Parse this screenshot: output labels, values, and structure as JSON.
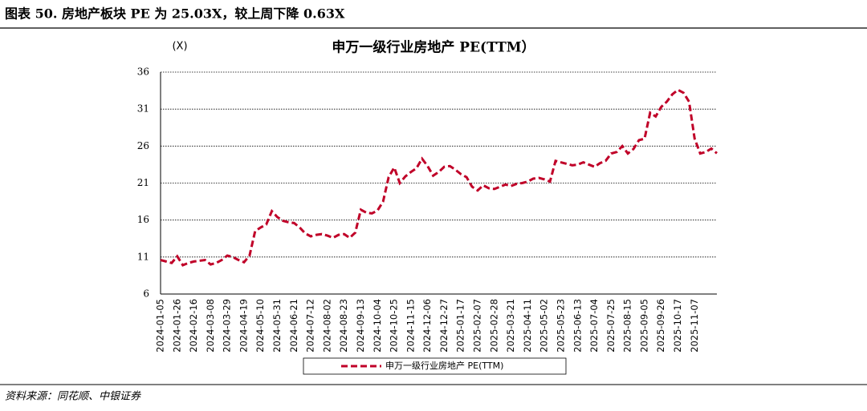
{
  "header": {
    "title": "图表 50. 房地产板块 PE 为 25.03X，较上周下降 0.63X"
  },
  "chart_data": {
    "type": "line",
    "title": "申万一级行业房地产 PE(TTM）",
    "y_unit": "(X)",
    "categories": [
      "2024-01-05",
      null,
      null,
      "2024-01-26",
      null,
      null,
      "2024-02-16",
      null,
      null,
      "2024-03-08",
      null,
      null,
      "2024-03-29",
      null,
      null,
      "2024-04-19",
      null,
      null,
      "2024-05-10",
      null,
      null,
      "2024-05-31",
      null,
      null,
      "2024-06-21",
      null,
      null,
      "2024-07-12",
      null,
      null,
      "2024-08-02",
      null,
      null,
      "2024-08-23",
      null,
      null,
      "2024-09-13",
      null,
      null,
      "2024-10-04",
      null,
      null,
      "2024-10-25",
      null,
      null,
      "2024-11-15",
      null,
      null,
      "2024-12-06",
      null,
      null,
      "2024-12-27",
      null,
      null,
      "2025-01-17",
      null,
      null,
      "2025-02-07",
      null,
      null,
      "2025-02-28",
      null,
      null,
      "2025-03-21",
      null,
      null,
      "2025-04-11",
      null,
      null,
      "2025-05-02",
      null,
      null,
      "2025-05-23",
      null,
      null,
      "2025-06-13",
      null,
      null,
      "2025-07-04",
      null,
      null,
      "2025-07-25",
      null,
      null,
      "2025-08-15",
      null,
      null,
      "2025-09-05",
      null,
      null,
      "2025-09-26",
      null,
      null,
      "2025-10-17",
      null,
      null,
      "2025-11-07",
      null,
      null,
      null,
      null
    ],
    "series": [
      {
        "name": "申万一级行业房地产 PE(TTM)",
        "color": "#c00028",
        "values": [
          10.6,
          10.4,
          10.2,
          11.1,
          9.9,
          10.2,
          10.4,
          10.5,
          10.6,
          10.0,
          10.2,
          10.6,
          11.2,
          11.0,
          10.6,
          10.3,
          11.2,
          14.5,
          15.0,
          15.4,
          17.2,
          16.4,
          15.9,
          15.7,
          15.6,
          15.0,
          14.2,
          13.8,
          14.0,
          14.1,
          13.9,
          13.6,
          14.0,
          14.1,
          13.6,
          14.3,
          17.4,
          17.0,
          16.9,
          17.3,
          18.5,
          21.8,
          23.1,
          21.0,
          21.9,
          22.5,
          23.0,
          24.3,
          23.3,
          22.0,
          22.5,
          23.2,
          23.3,
          22.8,
          22.2,
          21.8,
          20.5,
          20.0,
          20.7,
          20.3,
          20.2,
          20.5,
          20.8,
          20.6,
          20.9,
          21.0,
          21.2,
          21.6,
          21.7,
          21.5,
          21.2,
          24.0,
          23.8,
          23.6,
          23.4,
          23.5,
          23.8,
          23.5,
          23.2,
          23.7,
          24.0,
          25.0,
          25.2,
          26.0,
          25.0,
          25.6,
          26.8,
          27.0,
          30.5,
          30.0,
          31.3,
          32.0,
          33.0,
          33.6,
          33.2,
          32.0,
          27.0,
          25.0,
          25.2,
          25.66,
          25.03
        ]
      }
    ],
    "ylim": [
      6,
      36
    ],
    "yticks": [
      6,
      11,
      16,
      21,
      26,
      31,
      36
    ],
    "grid": true
  },
  "source": "资料来源：同花顺、中银证券"
}
